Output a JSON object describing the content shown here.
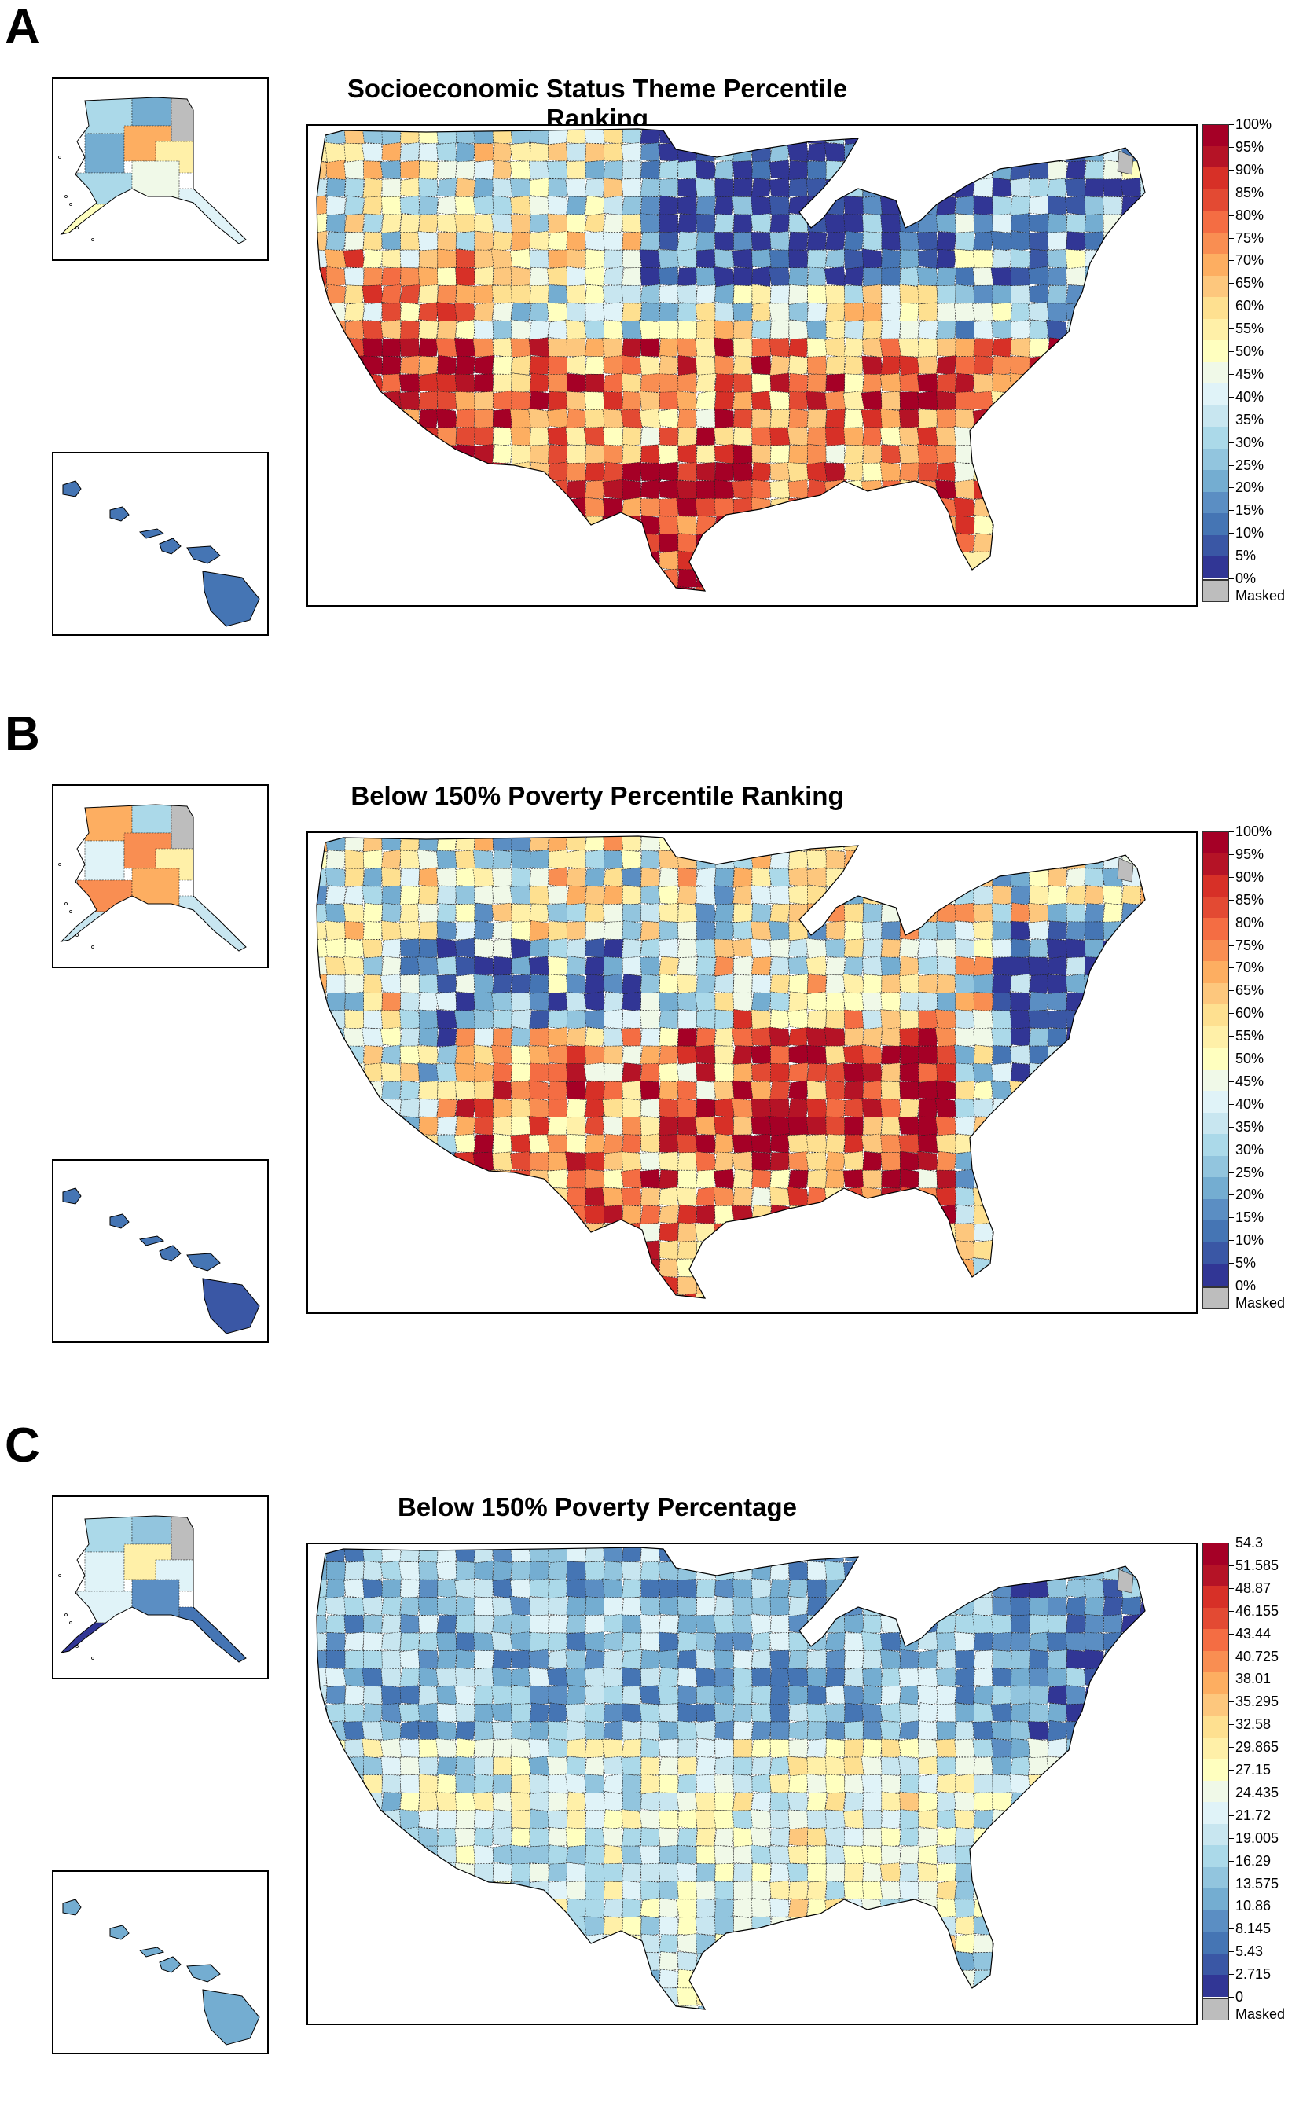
{
  "figure": {
    "panels": [
      {
        "letter": "A",
        "title": "Socioeconomic Status Theme Percentile Ranking",
        "colorbar": {
          "ticks": [
            "100%",
            "95%",
            "90%",
            "85%",
            "80%",
            "75%",
            "70%",
            "65%",
            "60%",
            "55%",
            "50%",
            "45%",
            "40%",
            "35%",
            "30%",
            "25%",
            "20%",
            "15%",
            "10%",
            "5%",
            "0%"
          ],
          "masked_label": "Masked"
        },
        "insets": [
          "alaska",
          "hawaii"
        ],
        "dominant_pattern": "high in south and west, low in upper midwest and northeast"
      },
      {
        "letter": "B",
        "title": "Below 150% Poverty Percentile Ranking",
        "colorbar": {
          "ticks": [
            "100%",
            "95%",
            "90%",
            "85%",
            "80%",
            "75%",
            "70%",
            "65%",
            "60%",
            "55%",
            "50%",
            "45%",
            "40%",
            "35%",
            "30%",
            "25%",
            "20%",
            "15%",
            "10%",
            "5%",
            "0%"
          ],
          "masked_label": "Masked"
        },
        "insets": [
          "alaska",
          "hawaii"
        ],
        "dominant_pattern": "high in south, southwest and appalachia"
      },
      {
        "letter": "C",
        "title": "Below 150% Poverty Percentage",
        "colorbar": {
          "ticks": [
            "54.3",
            "51.585",
            "48.87",
            "46.155",
            "43.44",
            "40.725",
            "38.01",
            "35.295",
            "32.58",
            "29.865",
            "27.15",
            "24.435",
            "21.72",
            "19.005",
            "16.29",
            "13.575",
            "10.86",
            "8.145",
            "5.43",
            "2.715",
            "0"
          ],
          "masked_label": "Masked"
        },
        "insets": [
          "alaska",
          "hawaii"
        ],
        "dominant_pattern": "mostly light blue, moderate in south"
      }
    ],
    "palette": [
      "#313695",
      "#3a57a5",
      "#4575b4",
      "#5b8ec3",
      "#74add1",
      "#92c5de",
      "#abd9e9",
      "#c8e6f0",
      "#e0f3f8",
      "#f0f9e8",
      "#ffffbf",
      "#fff0a8",
      "#fee090",
      "#fdc77d",
      "#fdae61",
      "#f98e52",
      "#f46d43",
      "#e34a33",
      "#d73027",
      "#b51326",
      "#a50026"
    ],
    "masked_color": "#bdbdbd"
  }
}
